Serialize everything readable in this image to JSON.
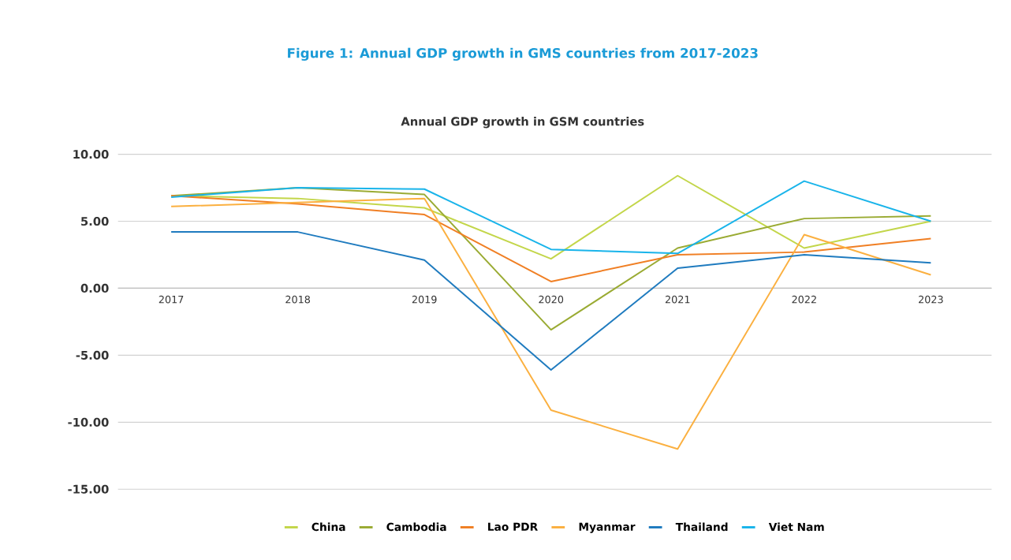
{
  "chart_data": {
    "type": "line",
    "title": "Figure 1:  Annual GDP growth in GMS countries from 2017-2023",
    "subtitle": "Annual GDP growth in GSM countries",
    "categories": [
      "2017",
      "2018",
      "2019",
      "2020",
      "2021",
      "2022",
      "2023"
    ],
    "series": [
      {
        "name": "China",
        "color": "#c3d64a",
        "values": [
          6.9,
          6.7,
          6.0,
          2.2,
          8.4,
          3.0,
          5.0
        ]
      },
      {
        "name": "Cambodia",
        "color": "#9aab33",
        "values": [
          6.9,
          7.5,
          7.0,
          -3.1,
          3.0,
          5.2,
          5.4
        ]
      },
      {
        "name": "Lao PDR",
        "color": "#f07f24",
        "values": [
          6.9,
          6.3,
          5.5,
          0.5,
          2.5,
          2.7,
          3.7
        ]
      },
      {
        "name": "Myanmar",
        "color": "#fbb040",
        "values": [
          6.1,
          6.4,
          6.7,
          -9.1,
          -12.0,
          4.0,
          1.0
        ]
      },
      {
        "name": "Thailand",
        "color": "#1f7bbf",
        "values": [
          4.2,
          4.2,
          2.1,
          -6.1,
          1.5,
          2.5,
          1.9
        ]
      },
      {
        "name": "Viet Nam",
        "color": "#19b4ea",
        "values": [
          6.8,
          7.5,
          7.4,
          2.9,
          2.6,
          8.0,
          5.0
        ]
      }
    ],
    "ylim": [
      -15,
      10
    ],
    "yticks": [
      {
        "value": 10,
        "label": "10.00"
      },
      {
        "value": 5,
        "label": "5.00"
      },
      {
        "value": 0,
        "label": "0.00"
      },
      {
        "value": -5,
        "label": "-5.00"
      },
      {
        "value": -10,
        "label": "-10.00"
      },
      {
        "value": -15,
        "label": "-15.00"
      }
    ],
    "grid": "y",
    "legend": "bottom",
    "marker": "none",
    "line_style": "solid"
  }
}
